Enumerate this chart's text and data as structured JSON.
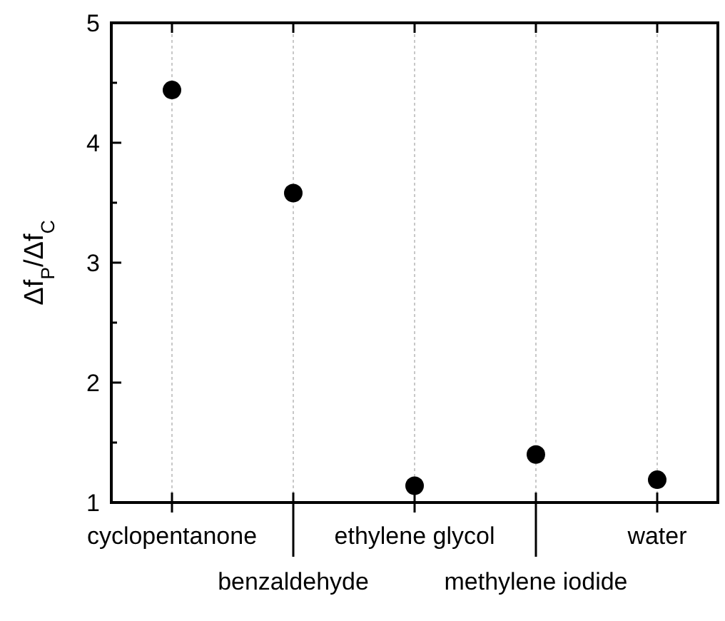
{
  "chart_data": {
    "type": "scatter",
    "ylabel": "Δf$_{P}$/Δf$_{C}$",
    "categories": [
      "cyclopentanone",
      "benzaldehyde",
      "ethylene glycol",
      "methylene iodide",
      "water"
    ],
    "series": [
      {
        "color": "#000000",
        "values": [
          4.44,
          3.58,
          1.14,
          1.4,
          1.19
        ]
      }
    ],
    "ylim": [
      1,
      5
    ],
    "yticks": [
      1,
      {
        "value": 1.5,
        "label": null
      },
      2,
      {
        "value": 2.5,
        "label": null
      },
      3,
      {
        "value": 3.5,
        "label": null
      },
      4,
      {
        "value": 4.5,
        "label": null
      },
      5
    ],
    "grid": "x",
    "marker": "circle"
  }
}
